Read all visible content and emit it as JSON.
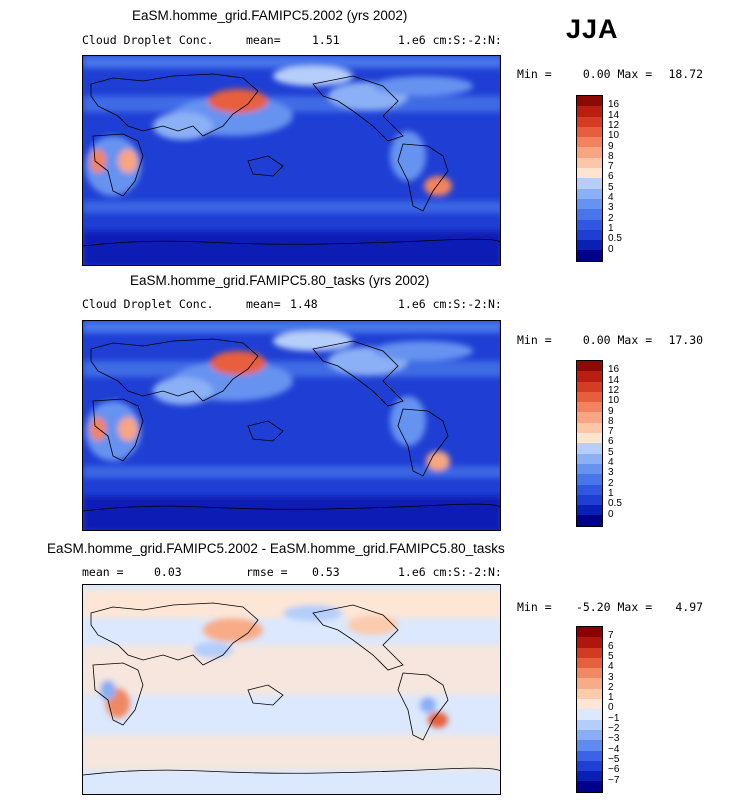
{
  "season": "JJA",
  "colors": {
    "seq": [
      "#00008b",
      "#0a1fb4",
      "#1f3fd4",
      "#2f57e2",
      "#4776ea",
      "#6692f0",
      "#8cb0f5",
      "#b6cffa",
      "#fde4d0",
      "#fbc7a8",
      "#f7a582",
      "#f2835e",
      "#e75e3c",
      "#d63c24",
      "#b81f10",
      "#8b0a04"
    ],
    "div": [
      "#00008b",
      "#0a1fb4",
      "#1f3fd4",
      "#3b63e6",
      "#5f8aef",
      "#89aef5",
      "#b4cdfa",
      "#dbe8fd",
      "#fde6d6",
      "#fbcbae",
      "#f7ab87",
      "#f08862",
      "#e5613d",
      "#d13b22",
      "#b0170c",
      "#8b0000"
    ]
  },
  "panels": [
    {
      "title": "EaSM.homme_grid.FAMIPC5.2002 (yrs 2002)",
      "variable": "Cloud Droplet Conc.",
      "mean_label": "mean=",
      "mean": "1.51",
      "rmse_label": "",
      "rmse": "",
      "units": "1.e6 cm:S:-2:N:",
      "min_label": "Min =",
      "min": "0.00",
      "max_label": "Max =",
      "max": "18.72",
      "ticks": [
        "16",
        "14",
        "12",
        "10",
        "9",
        "8",
        "7",
        "6",
        "5",
        "4",
        "3",
        "2",
        "1",
        "0.5",
        "0"
      ]
    },
    {
      "title": "EaSM.homme_grid.FAMIPC5.80_tasks (yrs 2002)",
      "variable": "Cloud Droplet Conc.",
      "mean_label": "mean=",
      "mean": "1.48",
      "rmse_label": "",
      "rmse": "",
      "units": "1.e6 cm:S:-2:N:",
      "min_label": "Min =",
      "min": "0.00",
      "max_label": "Max =",
      "max": "17.30",
      "ticks": [
        "16",
        "14",
        "12",
        "10",
        "9",
        "8",
        "7",
        "6",
        "5",
        "4",
        "3",
        "2",
        "1",
        "0.5",
        "0"
      ]
    },
    {
      "title": "EaSM.homme_grid.FAMIPC5.2002 - EaSM.homme_grid.FAMIPC5.80_tasks",
      "variable": "",
      "mean_label": "mean =",
      "mean": "0.03",
      "rmse_label": "rmse =",
      "rmse": "0.53",
      "units": "1.e6 cm:S:-2:N:",
      "min_label": "Min =",
      "min": "-5.20",
      "max_label": "Max =",
      "max": "4.97",
      "ticks": [
        "7",
        "6",
        "5",
        "4",
        "3",
        "2",
        "1",
        "0",
        "−1",
        "−2",
        "−3",
        "−4",
        "−5",
        "−6",
        "−7"
      ]
    }
  ]
}
